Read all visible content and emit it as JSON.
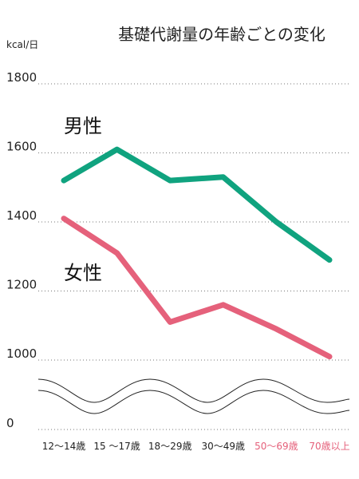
{
  "chart_data": {
    "type": "line",
    "title": "基礎代謝量の年齢ごとの変化",
    "ylabel": "kcal/日",
    "xlabel": "",
    "categories": [
      "12〜14歳",
      "15 〜17歳",
      "18〜29歳",
      "30〜49歳",
      "50〜69歳",
      "70歳以上"
    ],
    "y_ticks": [
      "1800",
      "1600",
      "1400",
      "1200",
      "1000",
      "0"
    ],
    "ylim": [
      1000,
      1800
    ],
    "axis_break": "between 0 and 1000 (wavy break)",
    "grid": true,
    "series": [
      {
        "name": "男性",
        "values": [
          1520,
          1610,
          1520,
          1530,
          1400,
          1290
        ]
      },
      {
        "name": "女性",
        "values": [
          1410,
          1310,
          1110,
          1160,
          1090,
          1010
        ]
      }
    ],
    "highlighted_categories": [
      "50〜69歳",
      "70歳以上"
    ]
  },
  "colors": {
    "male": "#10a37f",
    "female": "#e5617b",
    "highlight_tick": "#e5617b",
    "tick": "#222222"
  }
}
